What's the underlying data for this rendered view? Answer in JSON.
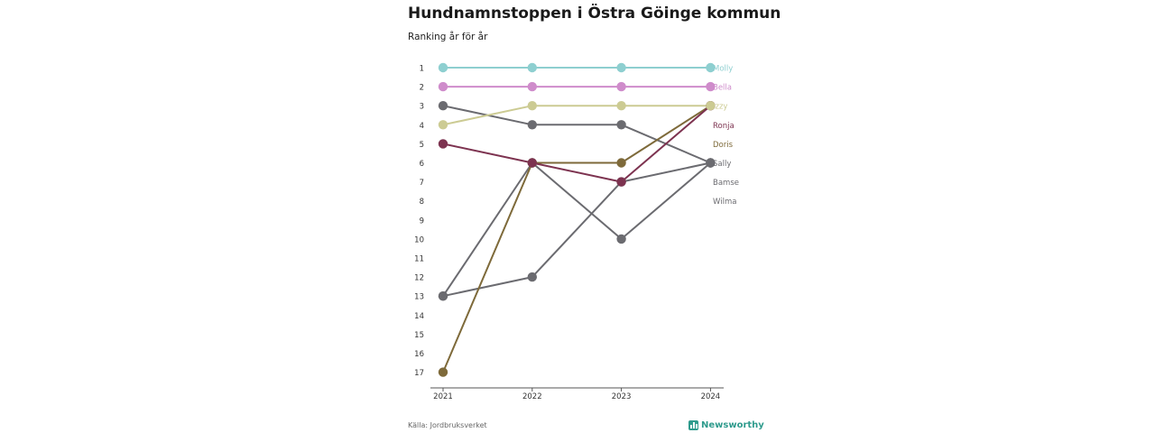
{
  "header": {
    "title": "Hundnamnstoppen i Östra Göinge kommun",
    "subtitle": "Ranking år för år"
  },
  "footer": {
    "source": "Källa: Jordbruksverket",
    "brand": "Newsworthy",
    "brand_color": "#2f9b8d"
  },
  "chart_data": {
    "type": "line",
    "subtype": "bump",
    "x": [
      "2021",
      "2022",
      "2023",
      "2024"
    ],
    "y_ticks": [
      "1",
      "2",
      "3",
      "4",
      "5",
      "6",
      "7",
      "8",
      "9",
      "10",
      "11",
      "12",
      "13",
      "14",
      "15",
      "16",
      "17"
    ],
    "ylim": [
      1,
      17
    ],
    "y_reversed": true,
    "grid": false,
    "series": [
      {
        "name": "Molly",
        "ranks": [
          1,
          1,
          1,
          1
        ],
        "color": "#8ecfd0"
      },
      {
        "name": "Bella",
        "ranks": [
          2,
          2,
          2,
          2
        ],
        "color": "#cf8ccb"
      },
      {
        "name": "Izzy",
        "ranks": [
          4,
          3,
          3,
          3
        ],
        "color": "#cccb93"
      },
      {
        "name": "Ronja",
        "ranks": [
          5,
          6,
          7,
          3
        ],
        "color": "#7d3350"
      },
      {
        "name": "Doris",
        "ranks": [
          17,
          6,
          6,
          3
        ],
        "color": "#7e6a3a"
      },
      {
        "name": "Sally",
        "ranks": [
          3,
          4,
          4,
          6
        ],
        "color": "#6b6b70"
      },
      {
        "name": "Bamse",
        "ranks": [
          13,
          6,
          10,
          6
        ],
        "color": "#6b6b70"
      },
      {
        "name": "Wilma",
        "ranks": [
          13,
          12,
          7,
          6
        ],
        "color": "#6b6b70"
      }
    ],
    "label_ranks": [
      1,
      2,
      3,
      4,
      5,
      6,
      7,
      8
    ]
  }
}
